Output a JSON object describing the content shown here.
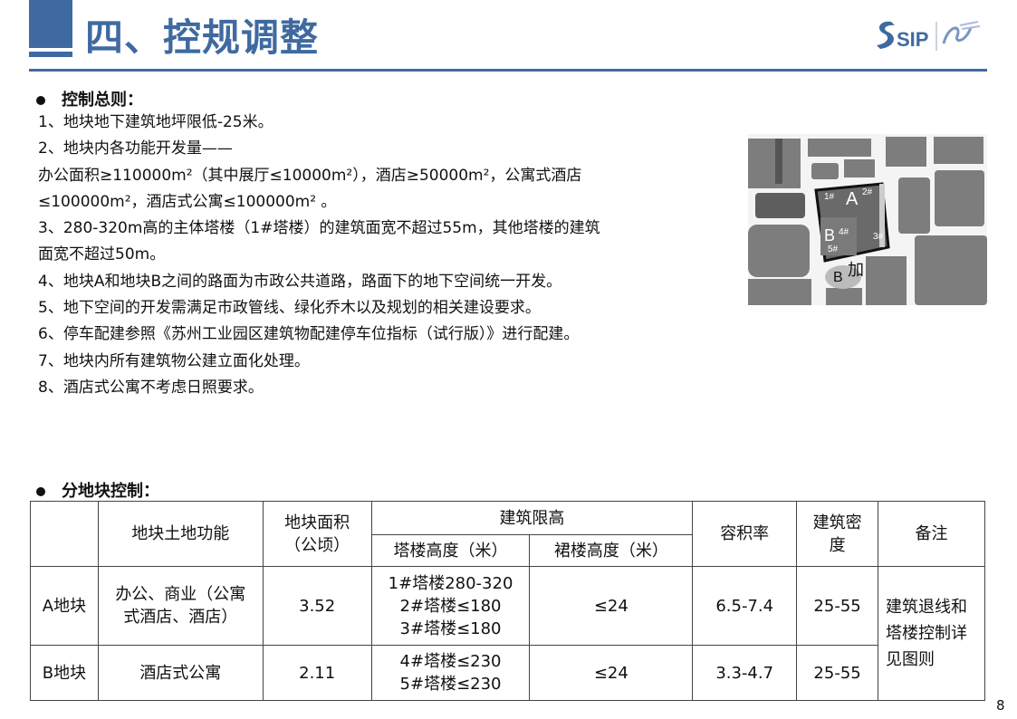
{
  "header": {
    "title": "四、控规调整",
    "logo_text": "SIP"
  },
  "section1": {
    "title": "控制总则：",
    "lines": [
      "1、地块地下建筑地坪限低-25米。",
      "2、地块内各功能开发量——",
      "办公面积≥110000m²（其中展厅≤10000m²），酒店≥50000m²，公寓式酒店",
      "≤100000m²，酒店式公寓≤100000m² 。",
      "3、280-320m高的主体塔楼（1#塔楼）的建筑面宽不超过55m，其他塔楼的建筑",
      "面宽不超过50m。",
      "4、地块A和地块B之间的路面为市政公共道路，路面下的地下空间统一开发。",
      "5、地下空间的开发需满足市政管线、绿化乔木以及规划的相关建设要求。",
      "6、停车配建参照《苏州工业园区建筑物配建停车位指标（试行版）》进行配建。",
      "7、地块内所有建筑物公建立面化处理。",
      "8、酒店式公寓不考虑日照要求。"
    ]
  },
  "map": {
    "labels": {
      "a": "A",
      "b": "B",
      "t1": "1#",
      "t2": "2#",
      "t3": "3#",
      "t4": "4#",
      "t5": "5#",
      "b2": "B",
      "jia": "加"
    }
  },
  "section2": {
    "title": "分地块控制："
  },
  "table": {
    "headers": {
      "func": "地块土地功能",
      "area": "地块面积（公顷）",
      "limit": "建筑限高",
      "tower": "塔楼高度（米）",
      "podium": "裙楼高度（米）",
      "far": "容积率",
      "density": "建筑密度",
      "note": "备注"
    },
    "rows": [
      {
        "name": "A地块",
        "func": "办公、商业（公寓式酒店、酒店）",
        "area": "3.52",
        "tower": [
          "1#塔楼280-320",
          "2#塔楼≤180",
          "3#塔楼≤180"
        ],
        "podium": "≤24",
        "far": "6.5-7.4",
        "density": "25-55"
      },
      {
        "name": "B地块",
        "func": "酒店式公寓",
        "area": "2.11",
        "tower": [
          "4#塔楼≤230",
          "5#塔楼≤230"
        ],
        "podium": "≤24",
        "far": "3.3-4.7",
        "density": "25-55"
      }
    ],
    "note": "建筑退线和塔楼控制详见图则"
  },
  "page_number": "8",
  "colors": {
    "accent": "#3f6aa0"
  }
}
